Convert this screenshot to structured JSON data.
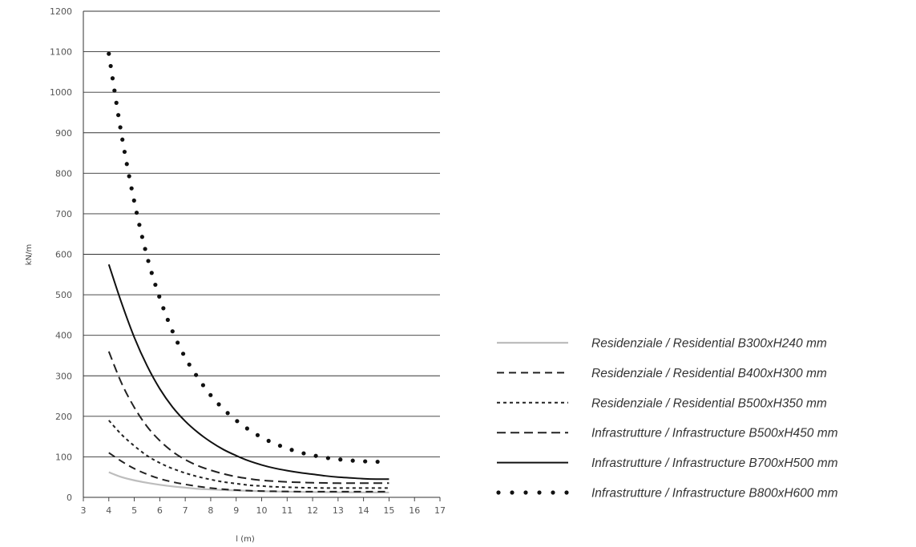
{
  "chart_data": {
    "type": "line",
    "xlabel": "l (m)",
    "ylabel": "kN/m",
    "xlim": [
      3,
      17
    ],
    "ylim": [
      0,
      1200
    ],
    "xticks": [
      3,
      4,
      5,
      6,
      7,
      8,
      9,
      10,
      11,
      12,
      13,
      14,
      15,
      16,
      17
    ],
    "yticks": [
      0,
      100,
      200,
      300,
      400,
      500,
      600,
      700,
      800,
      900,
      1000,
      1100,
      1200
    ],
    "grid": "horizontal",
    "legend_position": "right",
    "x": [
      4,
      4.5,
      5,
      5.5,
      6,
      6.5,
      7,
      7.5,
      8,
      8.5,
      9,
      9.5,
      10,
      10.5,
      11,
      11.5,
      12,
      12.5,
      13,
      13.5,
      14,
      14.5,
      15
    ],
    "series": [
      {
        "name": "Residenziale / Residential B300xH240 mm",
        "style": "solid-gray",
        "color": "#bdbdbd",
        "values": [
          62,
          50,
          42,
          36,
          31,
          27,
          24,
          21,
          19.5,
          18,
          17,
          16,
          15,
          14.5,
          14,
          13.5,
          13,
          12.8,
          12.5,
          12.3,
          12.2,
          12.1,
          12
        ]
      },
      {
        "name": "Residenziale / Residential B400xH300 mm",
        "style": "dash",
        "color": "#222222",
        "values": [
          110,
          89,
          71,
          57,
          46,
          38,
          32,
          27,
          23,
          20,
          18,
          16.5,
          15.5,
          15,
          14.5,
          14.2,
          14,
          14,
          14,
          14,
          14,
          14,
          14
        ]
      },
      {
        "name": "Residenziale / Residential B500xH350 mm",
        "style": "dot-dash",
        "color": "#222222",
        "values": [
          190,
          155,
          127,
          103,
          85,
          71,
          60,
          51,
          44,
          38,
          34,
          30,
          28,
          26,
          25,
          24,
          23.5,
          23,
          23,
          23,
          23,
          23,
          23
        ]
      },
      {
        "name": "Infrastrutture / Infrastructure B500xH450 mm",
        "style": "long-dash",
        "color": "#222222",
        "values": [
          360,
          282,
          222,
          175,
          140,
          113,
          93,
          78,
          67,
          58,
          51,
          46,
          42,
          40,
          38,
          37,
          36,
          35.5,
          35,
          35,
          35,
          35,
          35
        ]
      },
      {
        "name": "Infrastrutture / Infrastructure B700xH500 mm",
        "style": "solid",
        "color": "#111111",
        "values": [
          575,
          480,
          395,
          325,
          268,
          223,
          188,
          160,
          137,
          118,
          103,
          90,
          80,
          72,
          66,
          61,
          57,
          53,
          50,
          48,
          46,
          45,
          45
        ]
      },
      {
        "name": "Infrastrutture / Infrastructure B800xH600 mm",
        "style": "dotted",
        "color": "#111111",
        "values": [
          1095,
          895,
          730,
          595,
          492,
          410,
          345,
          295,
          252,
          218,
          190,
          167,
          148,
          133,
          121,
          111,
          104,
          98,
          94,
          91,
          89,
          88,
          87
        ]
      }
    ]
  }
}
